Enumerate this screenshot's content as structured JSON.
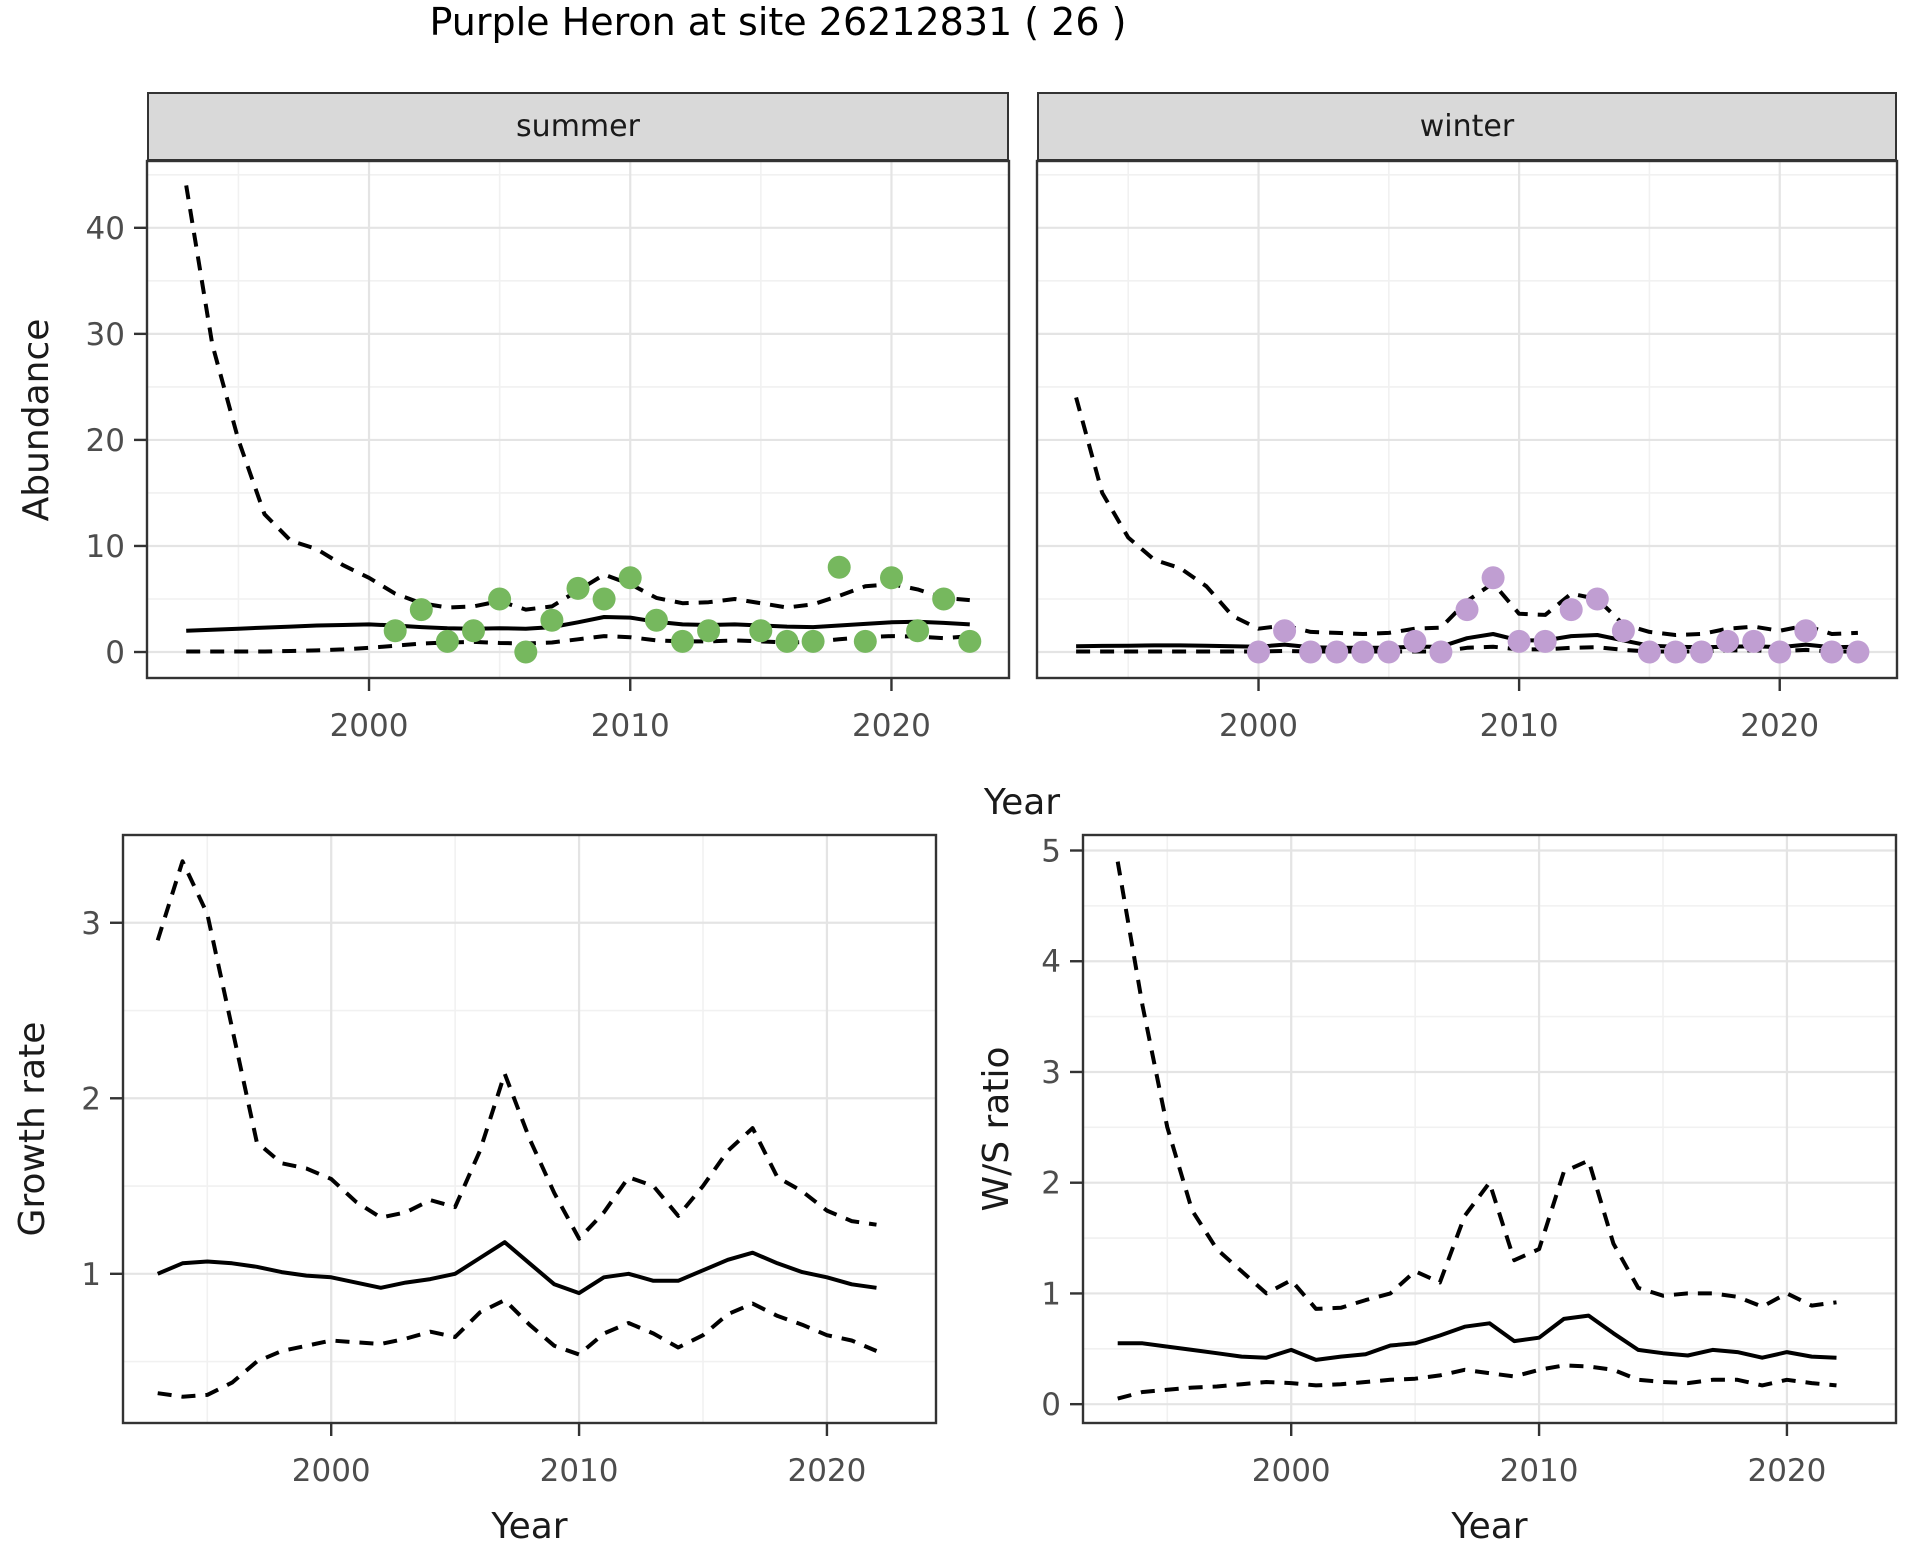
{
  "title": "Purple Heron at site 26212831 ( 26 )",
  "colors": {
    "summer_point": "#76b85e",
    "winter_point": "#c09ed2",
    "line": "#000000",
    "strip_bg": "#d9d9d9",
    "panel_border": "#333333",
    "grid_major": "#e4e4e4",
    "grid_minor": "#f1f1f1",
    "tick_text": "#4d4d4d"
  },
  "facets": {
    "summer_label": "summer",
    "winter_label": "winter"
  },
  "axis_titles": {
    "abundance": "Abundance",
    "year_top": "Year",
    "growth": "Growth rate",
    "ws": "W/S ratio",
    "year_growth": "Year",
    "year_ws": "Year"
  },
  "chart_data": [
    {
      "id": "abundance_summer",
      "type": "line",
      "facet": "summer",
      "title": "Purple Heron at site 26212831 ( 26 )",
      "xlabel": "Year",
      "ylabel": "Abundance",
      "xlim": [
        1991.5,
        2024.5
      ],
      "ylim": [
        -2.45,
        46.3
      ],
      "x_ticks_major": [
        2000,
        2010,
        2020
      ],
      "x_ticks_minor": [
        1995,
        2005,
        2015
      ],
      "y_ticks_major": [
        0,
        10,
        20,
        30,
        40
      ],
      "y_ticks_minor": [
        5,
        15,
        25,
        35,
        45
      ],
      "x_start": 1993,
      "x_step": 1,
      "series": [
        {
          "name": "upper_ci",
          "style": "dashed",
          "values": [
            44,
            29,
            20,
            13,
            10.5,
            9.7,
            8.2,
            7.0,
            5.5,
            4.6,
            4.2,
            4.3,
            4.8,
            4.0,
            4.3,
            5.8,
            7.3,
            6.4,
            5.1,
            4.6,
            4.7,
            5.0,
            4.6,
            4.2,
            4.5,
            5.3,
            6.2,
            6.4,
            5.9,
            5.1,
            4.9
          ]
        },
        {
          "name": "median",
          "style": "solid",
          "values": [
            2.0,
            2.1,
            2.2,
            2.3,
            2.4,
            2.5,
            2.55,
            2.6,
            2.5,
            2.35,
            2.25,
            2.2,
            2.25,
            2.2,
            2.35,
            2.8,
            3.3,
            3.25,
            2.85,
            2.6,
            2.55,
            2.6,
            2.5,
            2.4,
            2.35,
            2.5,
            2.65,
            2.8,
            2.85,
            2.75,
            2.6
          ]
        },
        {
          "name": "lower_ci",
          "style": "dashed",
          "values": [
            0.05,
            0.05,
            0.05,
            0.05,
            0.1,
            0.15,
            0.25,
            0.4,
            0.6,
            0.8,
            0.9,
            0.95,
            0.85,
            0.8,
            0.9,
            1.2,
            1.5,
            1.4,
            1.1,
            1.0,
            1.0,
            1.1,
            1.0,
            0.9,
            0.95,
            1.2,
            1.4,
            1.5,
            1.45,
            1.3,
            1.5
          ]
        }
      ],
      "points": {
        "name": "observed_counts_summer",
        "color_key": "summer_point",
        "data": [
          [
            2001,
            2
          ],
          [
            2002,
            4
          ],
          [
            2003,
            1
          ],
          [
            2004,
            2
          ],
          [
            2005,
            5
          ],
          [
            2006,
            0
          ],
          [
            2007,
            3
          ],
          [
            2008,
            6
          ],
          [
            2009,
            5
          ],
          [
            2010,
            7
          ],
          [
            2011,
            3
          ],
          [
            2012,
            1
          ],
          [
            2013,
            2
          ],
          [
            2015,
            2
          ],
          [
            2016,
            1
          ],
          [
            2017,
            1
          ],
          [
            2018,
            8
          ],
          [
            2019,
            1
          ],
          [
            2020,
            7
          ],
          [
            2021,
            2
          ],
          [
            2022,
            5
          ],
          [
            2023,
            1
          ]
        ]
      }
    },
    {
      "id": "abundance_winter",
      "type": "line",
      "facet": "winter",
      "xlabel": "Year",
      "ylabel": "Abundance",
      "xlim": [
        1991.5,
        2024.5
      ],
      "ylim": [
        -2.45,
        46.3
      ],
      "x_ticks_major": [
        2000,
        2010,
        2020
      ],
      "x_ticks_minor": [
        1995,
        2005,
        2015
      ],
      "y_ticks_major": [
        0,
        10,
        20,
        30,
        40
      ],
      "y_ticks_minor": [
        5,
        15,
        25,
        35,
        45
      ],
      "x_start": 1993,
      "x_step": 1,
      "series": [
        {
          "name": "upper_ci",
          "style": "dashed",
          "values": [
            24,
            15,
            10.8,
            8.7,
            7.9,
            6.2,
            3.4,
            2.2,
            2.5,
            1.9,
            1.8,
            1.7,
            1.8,
            2.2,
            2.3,
            4.8,
            6.5,
            3.6,
            3.5,
            5.5,
            5.0,
            2.6,
            1.9,
            1.6,
            1.7,
            2.2,
            2.4,
            2.0,
            2.5,
            1.7,
            1.8
          ]
        },
        {
          "name": "median",
          "style": "solid",
          "values": [
            0.55,
            0.58,
            0.6,
            0.62,
            0.62,
            0.6,
            0.55,
            0.5,
            0.7,
            0.45,
            0.4,
            0.4,
            0.42,
            0.5,
            0.5,
            1.3,
            1.7,
            1.1,
            1.1,
            1.5,
            1.6,
            1.1,
            0.6,
            0.5,
            0.45,
            0.5,
            0.55,
            0.45,
            0.7,
            0.45,
            0.5
          ]
        },
        {
          "name": "lower_ci",
          "style": "dashed",
          "values": [
            0.05,
            0.05,
            0.05,
            0.05,
            0.05,
            0.05,
            0.05,
            0.05,
            0.1,
            0.05,
            0.05,
            0.05,
            0.05,
            0.05,
            0.05,
            0.4,
            0.5,
            0.25,
            0.25,
            0.4,
            0.45,
            0.2,
            0.05,
            0.05,
            0.05,
            0.15,
            0.15,
            0.1,
            0.2,
            0.05,
            0.05
          ]
        }
      ],
      "points": {
        "name": "observed_counts_winter",
        "color_key": "winter_point",
        "data": [
          [
            2000,
            0
          ],
          [
            2001,
            2
          ],
          [
            2002,
            0
          ],
          [
            2003,
            0
          ],
          [
            2004,
            0
          ],
          [
            2005,
            0
          ],
          [
            2006,
            1
          ],
          [
            2007,
            0
          ],
          [
            2008,
            4
          ],
          [
            2009,
            7
          ],
          [
            2010,
            1
          ],
          [
            2011,
            1
          ],
          [
            2012,
            4
          ],
          [
            2013,
            5
          ],
          [
            2014,
            2
          ],
          [
            2015,
            0
          ],
          [
            2016,
            0
          ],
          [
            2017,
            0
          ],
          [
            2018,
            1
          ],
          [
            2019,
            1
          ],
          [
            2020,
            0
          ],
          [
            2021,
            2
          ],
          [
            2022,
            0
          ],
          [
            2023,
            0
          ]
        ]
      }
    },
    {
      "id": "growth_rate",
      "type": "line",
      "xlabel": "Year",
      "ylabel": "Growth rate",
      "xlim": [
        1991.6,
        2024.4
      ],
      "ylim": [
        0.15,
        3.5
      ],
      "x_ticks_major": [
        2000,
        2010,
        2020
      ],
      "x_ticks_minor": [
        1995,
        2005,
        2015
      ],
      "y_ticks_major": [
        1,
        2,
        3
      ],
      "y_ticks_minor": [
        0.5,
        1.5,
        2.5,
        3.5
      ],
      "x_start": 1993,
      "x_step": 1,
      "series": [
        {
          "name": "upper_ci",
          "style": "dashed",
          "values": [
            2.9,
            3.35,
            3.05,
            2.4,
            1.75,
            1.63,
            1.6,
            1.54,
            1.41,
            1.32,
            1.35,
            1.42,
            1.38,
            1.7,
            2.14,
            1.77,
            1.46,
            1.2,
            1.35,
            1.55,
            1.5,
            1.33,
            1.5,
            1.7,
            1.83,
            1.55,
            1.47,
            1.36,
            1.3,
            1.28
          ]
        },
        {
          "name": "median",
          "style": "solid",
          "values": [
            1.0,
            1.06,
            1.07,
            1.06,
            1.04,
            1.01,
            0.99,
            0.98,
            0.95,
            0.92,
            0.95,
            0.97,
            1.0,
            1.09,
            1.18,
            1.06,
            0.94,
            0.89,
            0.98,
            1.0,
            0.96,
            0.96,
            1.02,
            1.08,
            1.12,
            1.06,
            1.01,
            0.98,
            0.94,
            0.92
          ]
        },
        {
          "name": "lower_ci",
          "style": "dashed",
          "values": [
            0.32,
            0.3,
            0.31,
            0.38,
            0.5,
            0.56,
            0.59,
            0.62,
            0.61,
            0.6,
            0.63,
            0.67,
            0.64,
            0.78,
            0.85,
            0.71,
            0.59,
            0.54,
            0.66,
            0.72,
            0.66,
            0.58,
            0.65,
            0.77,
            0.83,
            0.76,
            0.71,
            0.65,
            0.62,
            0.56
          ]
        }
      ],
      "points": null
    },
    {
      "id": "ws_ratio",
      "type": "line",
      "xlabel": "Year",
      "ylabel": "W/S ratio",
      "xlim": [
        1991.6,
        2024.4
      ],
      "ylim": [
        -0.17,
        5.14
      ],
      "x_ticks_major": [
        2000,
        2010,
        2020
      ],
      "x_ticks_minor": [
        1995,
        2005,
        2015
      ],
      "y_ticks_major": [
        0,
        1,
        2,
        3,
        4,
        5
      ],
      "y_ticks_minor": [
        0.5,
        1.5,
        2.5,
        3.5,
        4.5
      ],
      "x_start": 1993,
      "x_step": 1,
      "series": [
        {
          "name": "upper_ci",
          "style": "dashed",
          "values": [
            4.9,
            3.6,
            2.5,
            1.75,
            1.4,
            1.2,
            1.0,
            1.12,
            0.86,
            0.87,
            0.94,
            1.0,
            1.2,
            1.1,
            1.7,
            2.0,
            1.3,
            1.4,
            2.1,
            2.2,
            1.45,
            1.05,
            0.98,
            1.0,
            1.0,
            0.97,
            0.88,
            1.0,
            0.89,
            0.92
          ]
        },
        {
          "name": "median",
          "style": "solid",
          "values": [
            0.55,
            0.55,
            0.52,
            0.49,
            0.46,
            0.43,
            0.42,
            0.49,
            0.4,
            0.43,
            0.45,
            0.53,
            0.55,
            0.62,
            0.7,
            0.73,
            0.57,
            0.6,
            0.77,
            0.8,
            0.64,
            0.49,
            0.46,
            0.44,
            0.49,
            0.47,
            0.42,
            0.47,
            0.43,
            0.42
          ]
        },
        {
          "name": "lower_ci",
          "style": "dashed",
          "values": [
            0.05,
            0.11,
            0.13,
            0.15,
            0.16,
            0.18,
            0.2,
            0.19,
            0.17,
            0.18,
            0.2,
            0.22,
            0.23,
            0.26,
            0.31,
            0.28,
            0.25,
            0.31,
            0.35,
            0.34,
            0.31,
            0.22,
            0.2,
            0.19,
            0.22,
            0.22,
            0.17,
            0.22,
            0.19,
            0.17
          ]
        }
      ],
      "points": null
    }
  ]
}
